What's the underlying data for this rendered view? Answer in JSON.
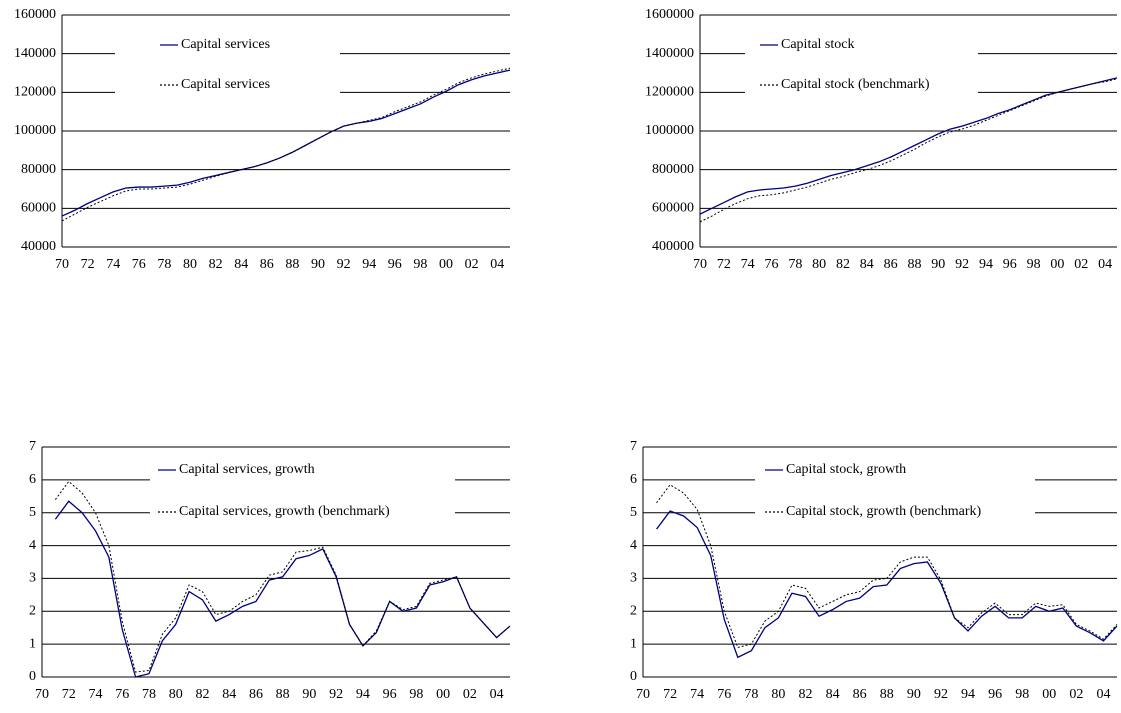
{
  "chart_data": [
    {
      "type": "line",
      "categories": [
        "70",
        null,
        "72",
        null,
        "74",
        null,
        "76",
        null,
        "78",
        null,
        "80",
        null,
        "82",
        null,
        "84",
        null,
        "86",
        null,
        "88",
        null,
        "90",
        null,
        "92",
        null,
        "94",
        null,
        "96",
        null,
        "98",
        null,
        "00",
        null,
        "02",
        null,
        "04",
        null
      ],
      "series": [
        {
          "name": "Capital services",
          "color": "#000080",
          "line_style": "solid",
          "values": [
            56000,
            59000,
            62500,
            65500,
            68500,
            70500,
            71000,
            71000,
            71500,
            72000,
            73500,
            75500,
            77000,
            78500,
            80000,
            81500,
            83500,
            86000,
            89000,
            92500,
            96000,
            99500,
            102500,
            104000,
            105000,
            106500,
            109000,
            111500,
            114000,
            117500,
            120500,
            124000,
            126500,
            128500,
            130000,
            131500
          ]
        },
        {
          "name": "Capital services",
          "color": "#000000",
          "line_style": "dotted",
          "values": [
            53500,
            57000,
            60500,
            63500,
            66500,
            69000,
            70000,
            70000,
            70500,
            71000,
            72500,
            74500,
            76500,
            78500,
            80000,
            81500,
            83500,
            86000,
            89000,
            92500,
            96000,
            99500,
            102500,
            104000,
            105500,
            107000,
            110000,
            112500,
            115000,
            118500,
            121500,
            125000,
            127500,
            129500,
            131000,
            132500
          ]
        }
      ],
      "ylim": [
        40000,
        160000
      ],
      "yticks": [
        40000,
        60000,
        80000,
        100000,
        120000,
        140000,
        160000
      ],
      "grid": true,
      "legend": "top"
    },
    {
      "type": "line",
      "categories": [
        "70",
        null,
        "72",
        null,
        "74",
        null,
        "76",
        null,
        "78",
        null,
        "80",
        null,
        "82",
        null,
        "84",
        null,
        "86",
        null,
        "88",
        null,
        "90",
        null,
        "92",
        null,
        "94",
        null,
        "96",
        null,
        "98",
        null,
        "00",
        null,
        "02",
        null,
        "04",
        null
      ],
      "series": [
        {
          "name": "Capital stock",
          "color": "#000080",
          "line_style": "solid",
          "values": [
            570000,
            600000,
            630000,
            660000,
            685000,
            695000,
            700000,
            705000,
            715000,
            730000,
            750000,
            770000,
            785000,
            800000,
            820000,
            840000,
            865000,
            895000,
            925000,
            955000,
            985000,
            1010000,
            1025000,
            1045000,
            1065000,
            1090000,
            1110000,
            1135000,
            1160000,
            1185000,
            1200000,
            1215000,
            1230000,
            1245000,
            1260000,
            1275000
          ]
        },
        {
          "name": "Capital stock (benchmark)",
          "color": "#000000",
          "line_style": "dotted",
          "values": [
            530000,
            560000,
            595000,
            625000,
            650000,
            665000,
            670000,
            680000,
            695000,
            710000,
            730000,
            750000,
            765000,
            785000,
            800000,
            820000,
            845000,
            875000,
            905000,
            940000,
            970000,
            995000,
            1010000,
            1030000,
            1055000,
            1080000,
            1105000,
            1130000,
            1155000,
            1180000,
            1200000,
            1215000,
            1230000,
            1245000,
            1255000,
            1270000
          ]
        }
      ],
      "ylim": [
        400000,
        1600000
      ],
      "yticks": [
        400000,
        600000,
        800000,
        1000000,
        1200000,
        1400000,
        1600000
      ],
      "grid": true,
      "legend": "top"
    },
    {
      "type": "line",
      "categories": [
        "70",
        null,
        "72",
        null,
        "74",
        null,
        "76",
        null,
        "78",
        null,
        "80",
        null,
        "82",
        null,
        "84",
        null,
        "86",
        null,
        "88",
        null,
        "90",
        null,
        "92",
        null,
        "94",
        null,
        "96",
        null,
        "98",
        null,
        "00",
        null,
        "02",
        null,
        "04",
        null
      ],
      "series": [
        {
          "name": "Capital services, growth",
          "color": "#000080",
          "line_style": "solid",
          "values": [
            null,
            4.8,
            5.35,
            5.0,
            4.45,
            3.65,
            1.45,
            0,
            0.1,
            1.1,
            1.6,
            2.6,
            2.35,
            1.7,
            1.9,
            2.15,
            2.3,
            2.95,
            3.05,
            3.6,
            3.7,
            3.9,
            3.05,
            1.6,
            0.95,
            1.35,
            2.3,
            2.0,
            2.1,
            2.8,
            2.9,
            3.05,
            2.1,
            1.65,
            1.2,
            1.55
          ]
        },
        {
          "name": "Capital services, growth (benchmark)",
          "color": "#000000",
          "line_style": "dotted",
          "values": [
            null,
            5.4,
            5.95,
            5.6,
            5.0,
            4.0,
            1.7,
            0.15,
            0.2,
            1.3,
            1.8,
            2.8,
            2.6,
            1.9,
            2.0,
            2.3,
            2.5,
            3.1,
            3.2,
            3.8,
            3.85,
            3.95,
            3.1,
            1.6,
            0.95,
            1.4,
            2.3,
            2.05,
            2.15,
            2.85,
            2.95,
            3.05,
            2.1,
            1.65,
            1.2,
            1.55
          ]
        }
      ],
      "ylim": [
        0,
        7
      ],
      "yticks": [
        0,
        1,
        2,
        3,
        4,
        5,
        6,
        7
      ],
      "grid": true,
      "legend": "top"
    },
    {
      "type": "line",
      "categories": [
        "70",
        null,
        "72",
        null,
        "74",
        null,
        "76",
        null,
        "78",
        null,
        "80",
        null,
        "82",
        null,
        "84",
        null,
        "86",
        null,
        "88",
        null,
        "90",
        null,
        "92",
        null,
        "94",
        null,
        "96",
        null,
        "98",
        null,
        "00",
        null,
        "02",
        null,
        "04",
        null
      ],
      "series": [
        {
          "name": "Capital stock, growth",
          "color": "#000080",
          "line_style": "solid",
          "values": [
            null,
            4.5,
            5.05,
            4.9,
            4.55,
            3.7,
            1.75,
            0.6,
            0.8,
            1.5,
            1.8,
            2.55,
            2.45,
            1.85,
            2.05,
            2.3,
            2.4,
            2.75,
            2.8,
            3.3,
            3.45,
            3.5,
            2.85,
            1.8,
            1.4,
            1.85,
            2.15,
            1.8,
            1.8,
            2.15,
            2.0,
            2.1,
            1.55,
            1.35,
            1.1,
            1.55
          ]
        },
        {
          "name": "Capital stock, growth (benchmark)",
          "color": "#000000",
          "line_style": "dotted",
          "values": [
            null,
            5.3,
            5.85,
            5.6,
            5.1,
            4.0,
            2.0,
            0.9,
            1.0,
            1.7,
            2.0,
            2.8,
            2.7,
            2.1,
            2.3,
            2.5,
            2.6,
            2.95,
            3.0,
            3.5,
            3.65,
            3.65,
            2.95,
            1.8,
            1.5,
            1.95,
            2.25,
            1.9,
            1.9,
            2.25,
            2.15,
            2.2,
            1.6,
            1.4,
            1.15,
            1.6
          ]
        }
      ],
      "ylim": [
        0,
        7
      ],
      "yticks": [
        0,
        1,
        2,
        3,
        4,
        5,
        6,
        7
      ],
      "grid": true,
      "legend": "top"
    }
  ]
}
